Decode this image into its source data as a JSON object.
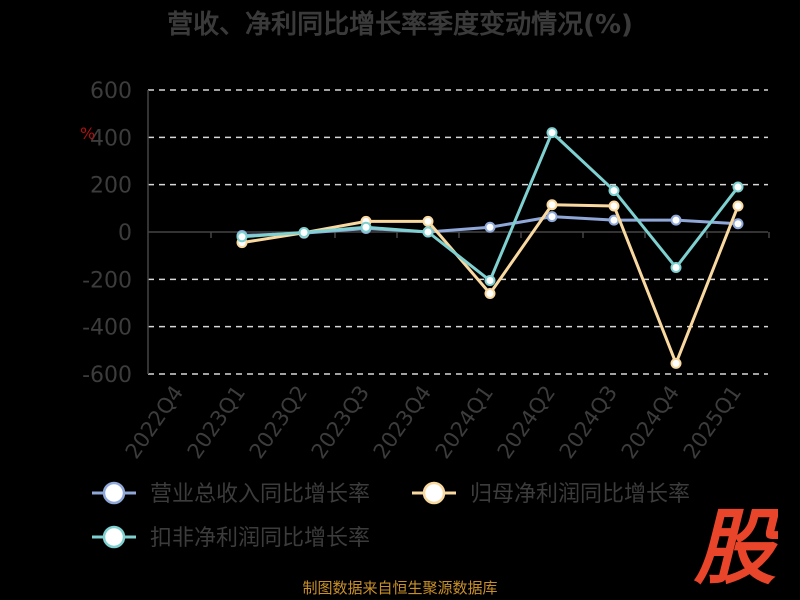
{
  "chart_data": {
    "type": "line",
    "title": "营收、净利同比增长率季度变动情况(%)",
    "y_unit_marker": "%",
    "categories": [
      "2022Q4",
      "2023Q1",
      "2023Q2",
      "2023Q3",
      "2023Q4",
      "2024Q1",
      "2024Q2",
      "2024Q3",
      "2024Q4",
      "2025Q1"
    ],
    "ylim": [
      -600,
      600
    ],
    "yticks": [
      600,
      400,
      200,
      0,
      -200,
      -400,
      -600
    ],
    "grid": true,
    "legend_position": "bottom",
    "series": [
      {
        "name": "营业总收入同比增长率",
        "color": "#8fa8d8",
        "values": [
          null,
          -15,
          -5,
          15,
          0,
          20,
          65,
          50,
          50,
          35
        ]
      },
      {
        "name": "归母净利润同比增长率",
        "color": "#f9d9a0",
        "values": [
          null,
          -45,
          -3,
          45,
          45,
          -260,
          115,
          110,
          -555,
          110
        ]
      },
      {
        "name": "扣非净利润同比增长率",
        "color": "#7fd0d0",
        "values": [
          null,
          -20,
          -2,
          20,
          0,
          -205,
          420,
          175,
          -150,
          190
        ]
      }
    ]
  },
  "footer_text": "制图数据来自恒生聚源数据库",
  "logo_text": "股"
}
